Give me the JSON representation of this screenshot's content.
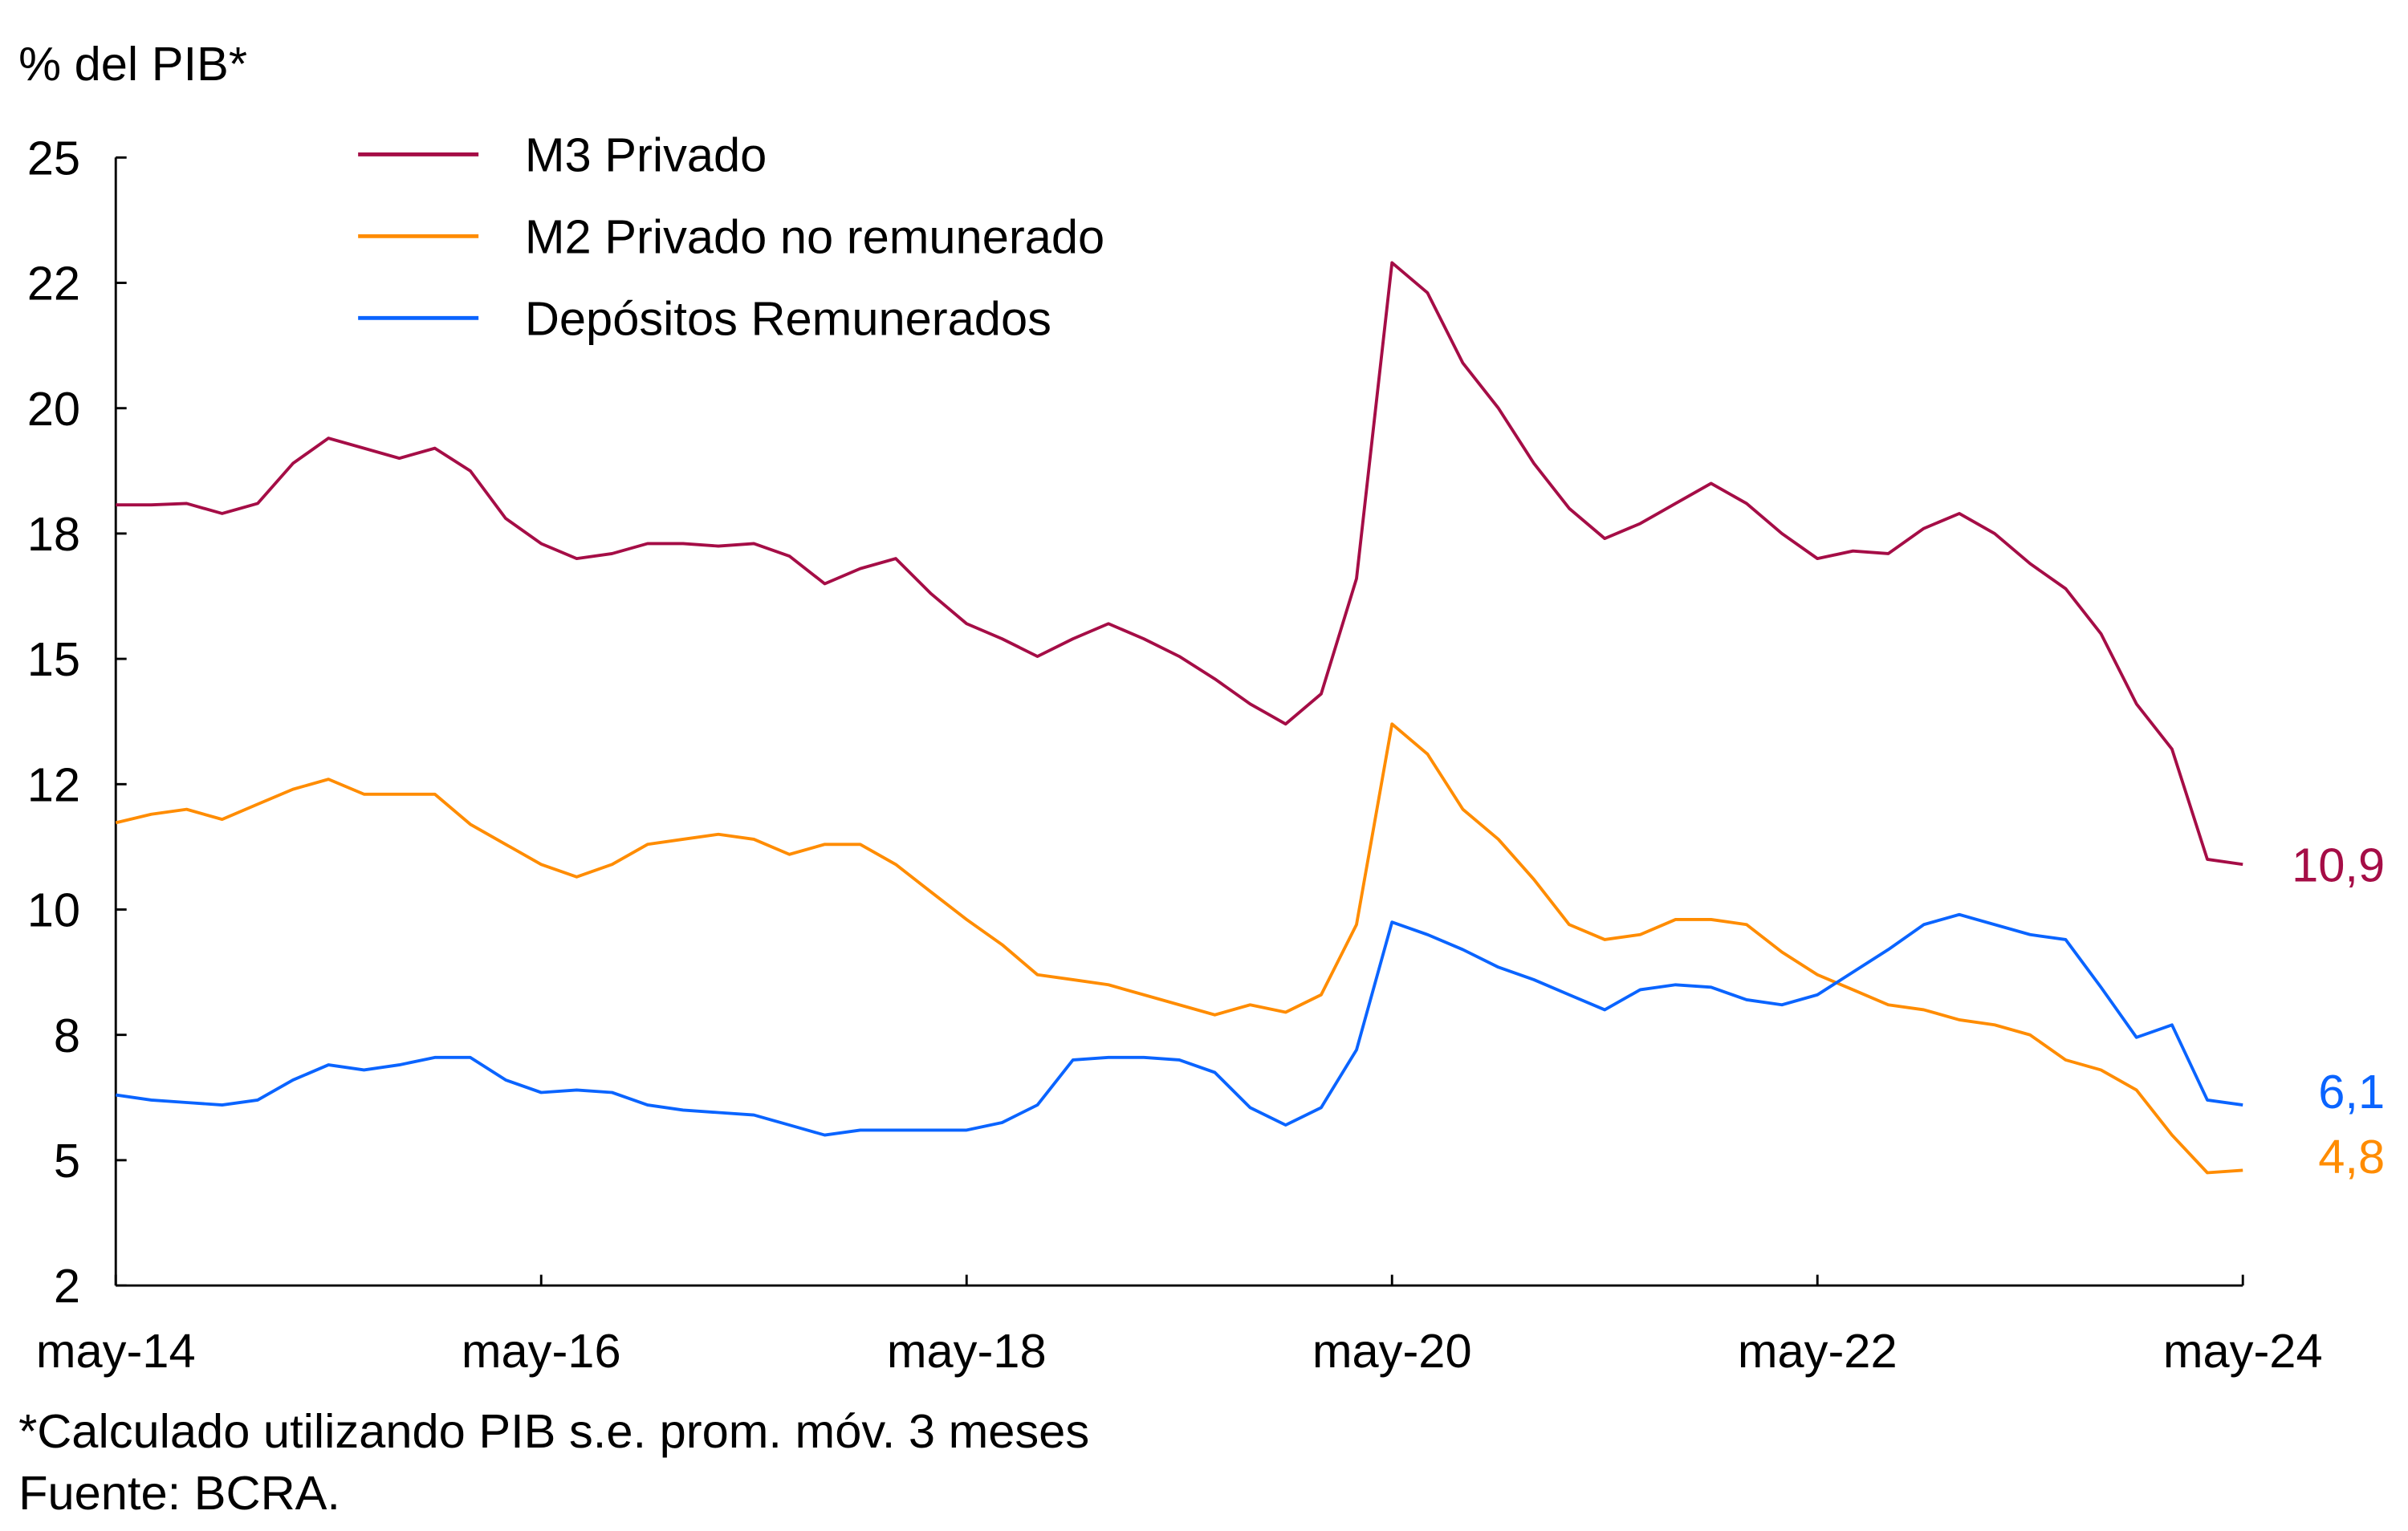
{
  "chart_data": {
    "type": "line",
    "ylabel": "% del PIB*",
    "ylim": [
      2.5,
      25
    ],
    "yticks": [
      25,
      22.5,
      20,
      17.5,
      15,
      12.5,
      10,
      7.5,
      5,
      2.5
    ],
    "ytick_labels": [
      "25",
      "22",
      "20",
      "18",
      "15",
      "12",
      "10",
      "8",
      "5",
      "2"
    ],
    "xlim": [
      "2014-05",
      "2024-05"
    ],
    "xticks": [
      "2014-05",
      "2016-05",
      "2018-05",
      "2020-05",
      "2022-05",
      "2024-05"
    ],
    "xtick_labels": [
      "may-14",
      "may-16",
      "may-18",
      "may-20",
      "may-22",
      "may-24"
    ],
    "grid": false,
    "legend_placement": "top-left",
    "x": [
      "2014-05",
      "2014-07",
      "2014-09",
      "2014-11",
      "2015-01",
      "2015-03",
      "2015-05",
      "2015-07",
      "2015-09",
      "2015-11",
      "2016-01",
      "2016-03",
      "2016-05",
      "2016-07",
      "2016-09",
      "2016-11",
      "2017-01",
      "2017-03",
      "2017-05",
      "2017-07",
      "2017-09",
      "2017-11",
      "2018-01",
      "2018-03",
      "2018-05",
      "2018-07",
      "2018-09",
      "2018-11",
      "2019-01",
      "2019-03",
      "2019-05",
      "2019-07",
      "2019-09",
      "2019-11",
      "2020-01",
      "2020-03",
      "2020-05",
      "2020-07",
      "2020-09",
      "2020-11",
      "2021-01",
      "2021-03",
      "2021-05",
      "2021-07",
      "2021-09",
      "2021-11",
      "2022-01",
      "2022-03",
      "2022-05",
      "2022-07",
      "2022-09",
      "2022-11",
      "2023-01",
      "2023-03",
      "2023-05",
      "2023-07",
      "2023-09",
      "2023-11",
      "2024-01",
      "2024-03",
      "2024-05"
    ],
    "series": [
      {
        "name": "M3 Privado",
        "color": "#a50d46",
        "end_label": "10,9",
        "values": [
          18.07,
          18.07,
          18.1,
          17.9,
          18.1,
          18.9,
          19.4,
          19.2,
          19.0,
          19.2,
          18.75,
          17.8,
          17.3,
          17.0,
          17.1,
          17.3,
          17.3,
          17.25,
          17.3,
          17.05,
          16.5,
          16.8,
          17.0,
          16.3,
          15.7,
          15.4,
          15.05,
          15.4,
          15.7,
          15.4,
          15.05,
          14.6,
          14.1,
          13.7,
          14.3,
          16.6,
          22.9,
          22.3,
          20.9,
          20.0,
          18.9,
          18.0,
          17.4,
          17.7,
          18.1,
          18.5,
          18.1,
          17.5,
          17.0,
          17.15,
          17.1,
          17.6,
          17.9,
          17.5,
          16.9,
          16.4,
          15.5,
          14.1,
          13.2,
          11.0,
          10.9
        ]
      },
      {
        "name": "M2 Privado no remunerado",
        "color": "#ff8c00",
        "end_label": "4,8",
        "values": [
          11.73,
          11.9,
          12.0,
          11.8,
          12.1,
          12.4,
          12.6,
          12.3,
          12.3,
          12.3,
          11.7,
          11.3,
          10.9,
          10.65,
          10.9,
          11.3,
          11.4,
          11.5,
          11.4,
          11.1,
          11.3,
          11.3,
          10.9,
          10.35,
          9.8,
          9.3,
          8.7,
          8.6,
          8.5,
          8.3,
          8.1,
          7.9,
          8.1,
          7.95,
          8.3,
          9.7,
          13.7,
          13.1,
          12.0,
          11.4,
          10.6,
          9.7,
          9.4,
          9.5,
          9.8,
          9.8,
          9.7,
          9.15,
          8.7,
          8.4,
          8.1,
          8.0,
          7.8,
          7.7,
          7.5,
          7.0,
          6.8,
          6.4,
          5.5,
          4.75,
          4.8
        ]
      },
      {
        "name": "Depósitos Remunerados",
        "color": "#0a64ff",
        "end_label": "6,1",
        "values": [
          6.3,
          6.2,
          6.15,
          6.1,
          6.2,
          6.6,
          6.9,
          6.8,
          6.9,
          7.05,
          7.05,
          6.6,
          6.35,
          6.4,
          6.35,
          6.1,
          6.0,
          5.95,
          5.9,
          5.7,
          5.5,
          5.6,
          5.6,
          5.6,
          5.6,
          5.75,
          6.1,
          7.0,
          7.05,
          7.05,
          7.0,
          6.75,
          6.05,
          5.7,
          6.05,
          7.2,
          9.75,
          9.5,
          9.2,
          8.85,
          8.6,
          8.3,
          8.0,
          8.4,
          8.5,
          8.45,
          8.2,
          8.1,
          8.3,
          8.75,
          9.2,
          9.7,
          9.9,
          9.7,
          9.5,
          9.4,
          8.45,
          7.45,
          7.7,
          6.2,
          6.1
        ]
      }
    ],
    "footnote": "*Calculado utilizando PIB s.e. prom. móv. 3 meses",
    "source": "Fuente: BCRA."
  }
}
